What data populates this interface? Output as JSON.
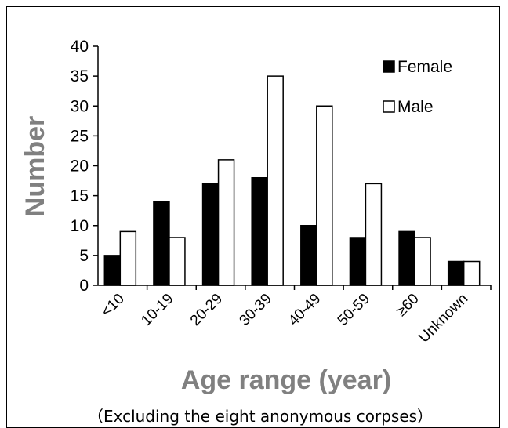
{
  "chart_data": {
    "type": "bar",
    "categories": [
      "<10",
      "10-19",
      "20-29",
      "30-39",
      "40-49",
      "50-59",
      "≥60",
      "Unknown"
    ],
    "series": [
      {
        "name": "Female",
        "values": [
          5,
          14,
          17,
          18,
          10,
          8,
          9,
          4
        ],
        "color": "#000000"
      },
      {
        "name": "Male",
        "values": [
          9,
          8,
          21,
          35,
          30,
          17,
          8,
          4
        ],
        "color": "#ffffff"
      }
    ],
    "xlabel": "Age range (year)",
    "ylabel": "Number",
    "ylim": [
      0,
      40
    ],
    "yticks": [
      0,
      5,
      10,
      15,
      20,
      25,
      30,
      35,
      40
    ],
    "grid": false,
    "legend_position": "top-right",
    "annotation": "（Excluding the eight anonymous corpses）",
    "axis_title_color": "#808080"
  }
}
